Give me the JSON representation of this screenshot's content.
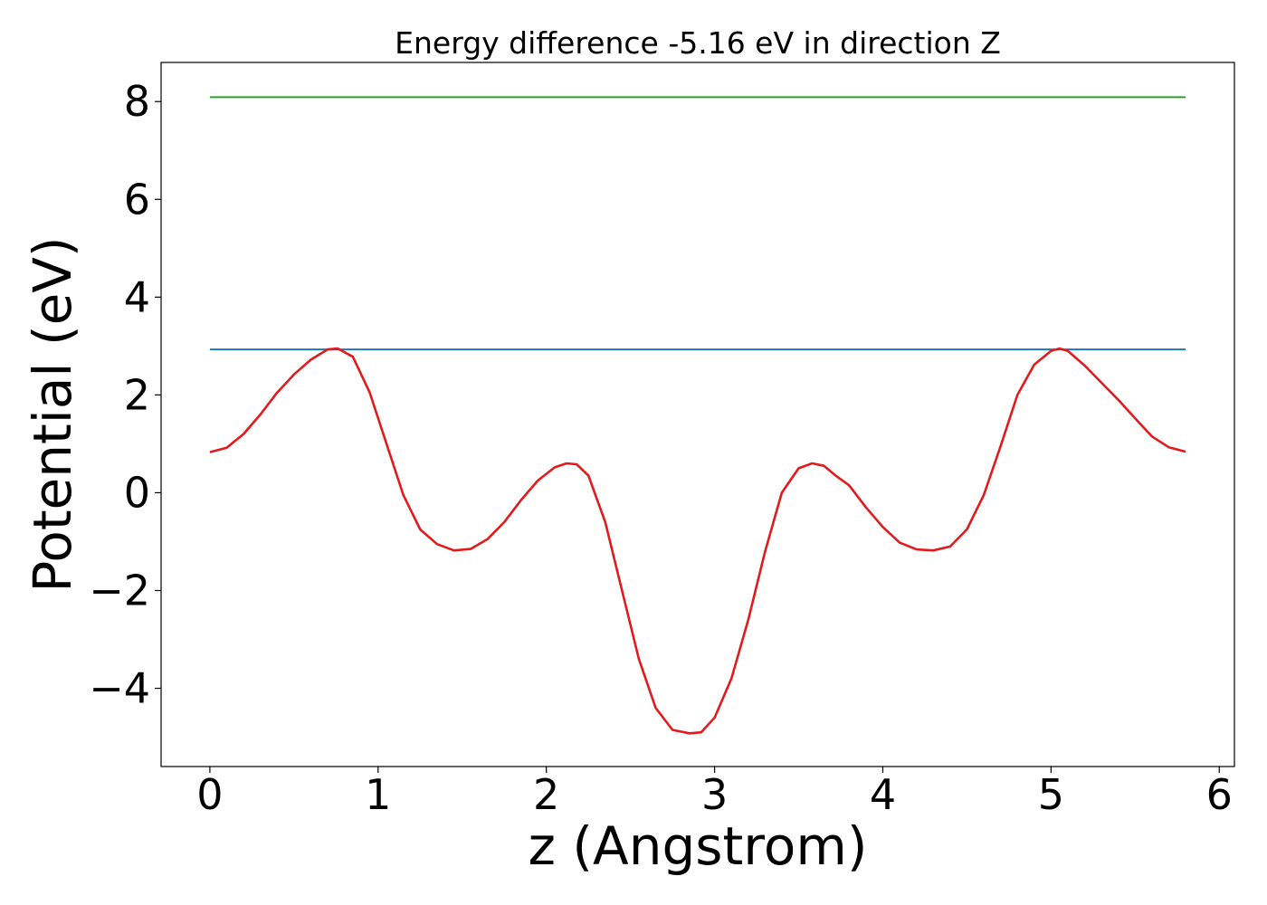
{
  "chart_data": {
    "type": "line",
    "title": "Energy difference -5.16 eV in direction Z",
    "xlabel": "z (Angstrom)",
    "ylabel": "Potential (eV)",
    "xlim": [
      -0.29,
      6.09
    ],
    "ylim": [
      -5.6,
      8.8
    ],
    "xticks": [
      0,
      1,
      2,
      3,
      4,
      5,
      6
    ],
    "xtick_labels": [
      "0",
      "1",
      "2",
      "3",
      "4",
      "5",
      "6"
    ],
    "yticks": [
      -4,
      -2,
      0,
      2,
      4,
      6,
      8
    ],
    "ytick_labels": [
      "−4",
      "−2",
      "0",
      "2",
      "4",
      "6",
      "8"
    ],
    "grid": false,
    "series": [
      {
        "color": "#2ca02c",
        "x": [
          0,
          5.8
        ],
        "y": [
          8.09,
          8.09
        ]
      },
      {
        "color": "#1f77b4",
        "x": [
          0,
          5.8
        ],
        "y": [
          2.93,
          2.93
        ]
      },
      {
        "color": "#e31a1c",
        "x": [
          0,
          0.1,
          0.2,
          0.3,
          0.4,
          0.5,
          0.6,
          0.7,
          0.76,
          0.85,
          0.95,
          1.05,
          1.15,
          1.25,
          1.35,
          1.45,
          1.55,
          1.65,
          1.75,
          1.85,
          1.95,
          2.05,
          2.12,
          2.18,
          2.25,
          2.35,
          2.45,
          2.55,
          2.65,
          2.75,
          2.85,
          2.92,
          3.0,
          3.1,
          3.2,
          3.3,
          3.4,
          3.5,
          3.58,
          3.65,
          3.72,
          3.8,
          3.9,
          4.0,
          4.1,
          4.2,
          4.3,
          4.4,
          4.5,
          4.6,
          4.7,
          4.8,
          4.9,
          5.0,
          5.05,
          5.1,
          5.2,
          5.3,
          5.4,
          5.5,
          5.6,
          5.7,
          5.8
        ],
        "y": [
          0.83,
          0.92,
          1.2,
          1.6,
          2.05,
          2.42,
          2.72,
          2.93,
          2.95,
          2.78,
          2.05,
          1.0,
          -0.05,
          -0.75,
          -1.05,
          -1.18,
          -1.15,
          -0.95,
          -0.6,
          -0.15,
          0.25,
          0.52,
          0.6,
          0.58,
          0.35,
          -0.6,
          -2.0,
          -3.4,
          -4.4,
          -4.85,
          -4.92,
          -4.9,
          -4.6,
          -3.8,
          -2.6,
          -1.2,
          0.0,
          0.5,
          0.6,
          0.55,
          0.35,
          0.15,
          -0.3,
          -0.7,
          -1.02,
          -1.16,
          -1.18,
          -1.1,
          -0.75,
          -0.05,
          0.95,
          2.0,
          2.62,
          2.9,
          2.95,
          2.9,
          2.6,
          2.25,
          1.9,
          1.52,
          1.15,
          0.93,
          0.84
        ]
      }
    ]
  }
}
